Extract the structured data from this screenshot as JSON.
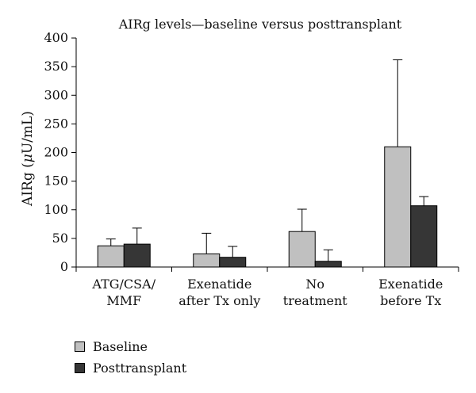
{
  "chart_data": {
    "type": "bar",
    "title": "AIRg levels—baseline versus posttransplant",
    "ylabel_prefix": "AIRg (",
    "ylabel_mu": "μ",
    "ylabel_suffix": "U/mL)",
    "ylim": [
      0,
      400
    ],
    "yticks": [
      "0",
      "50",
      "100",
      "150",
      "200",
      "250",
      "300",
      "350",
      "400"
    ],
    "grid": false,
    "legend_position": "bottom-left",
    "categories": [
      [
        "ATG/CSA/",
        "MMF"
      ],
      [
        "Exenatide",
        "after Tx only"
      ],
      [
        "No",
        "treatment"
      ],
      [
        "Exenatide",
        "before Tx"
      ]
    ],
    "series": [
      {
        "name": "Baseline",
        "color": "#c0c0c0",
        "values": [
          37,
          23,
          62,
          210
        ],
        "error": [
          12,
          36,
          39,
          152
        ]
      },
      {
        "name": "Posttransplant",
        "color": "#363636",
        "values": [
          40,
          17,
          10,
          107
        ],
        "error": [
          28,
          19,
          20,
          16
        ]
      }
    ]
  }
}
